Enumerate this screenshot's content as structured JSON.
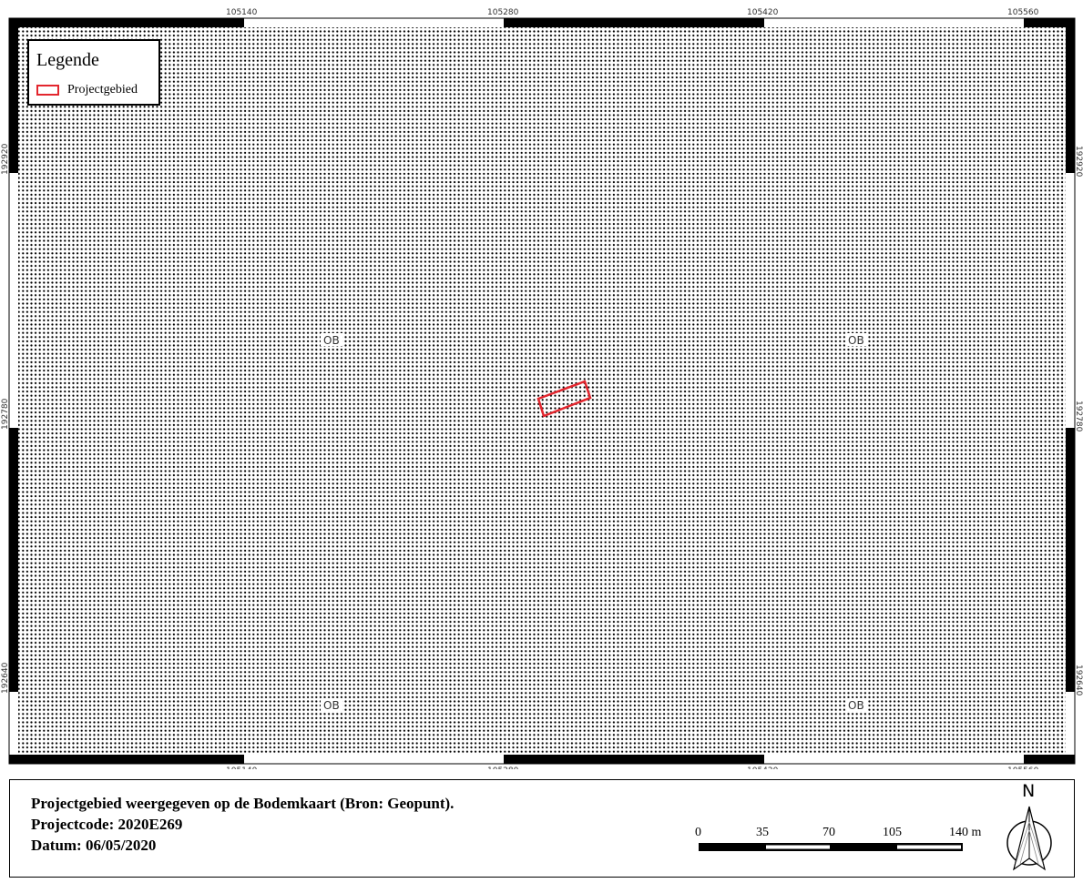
{
  "map": {
    "grid_x_labels": [
      "105140",
      "105280",
      "105420",
      "105560"
    ],
    "grid_y_labels": [
      "192920",
      "192780",
      "192640"
    ],
    "soil_labels": [
      "OB",
      "OB",
      "OB",
      "OB"
    ],
    "pattern": "dotted",
    "project_area_color": "#e3262e"
  },
  "legend": {
    "title": "Legende",
    "item_label": "Projectgebied",
    "item_color": "#e3262e"
  },
  "info": {
    "title": "Projectgebied weergegeven op de Bodemkaart (Bron: Geopunt).",
    "code": "Projectcode: 2020E269",
    "date": "Datum: 06/05/2020"
  },
  "scalebar": {
    "labels": [
      "0",
      "35",
      "70",
      "105",
      "140 m"
    ]
  },
  "north_arrow": {
    "label": "N",
    "icon": "north-arrow-icon"
  }
}
